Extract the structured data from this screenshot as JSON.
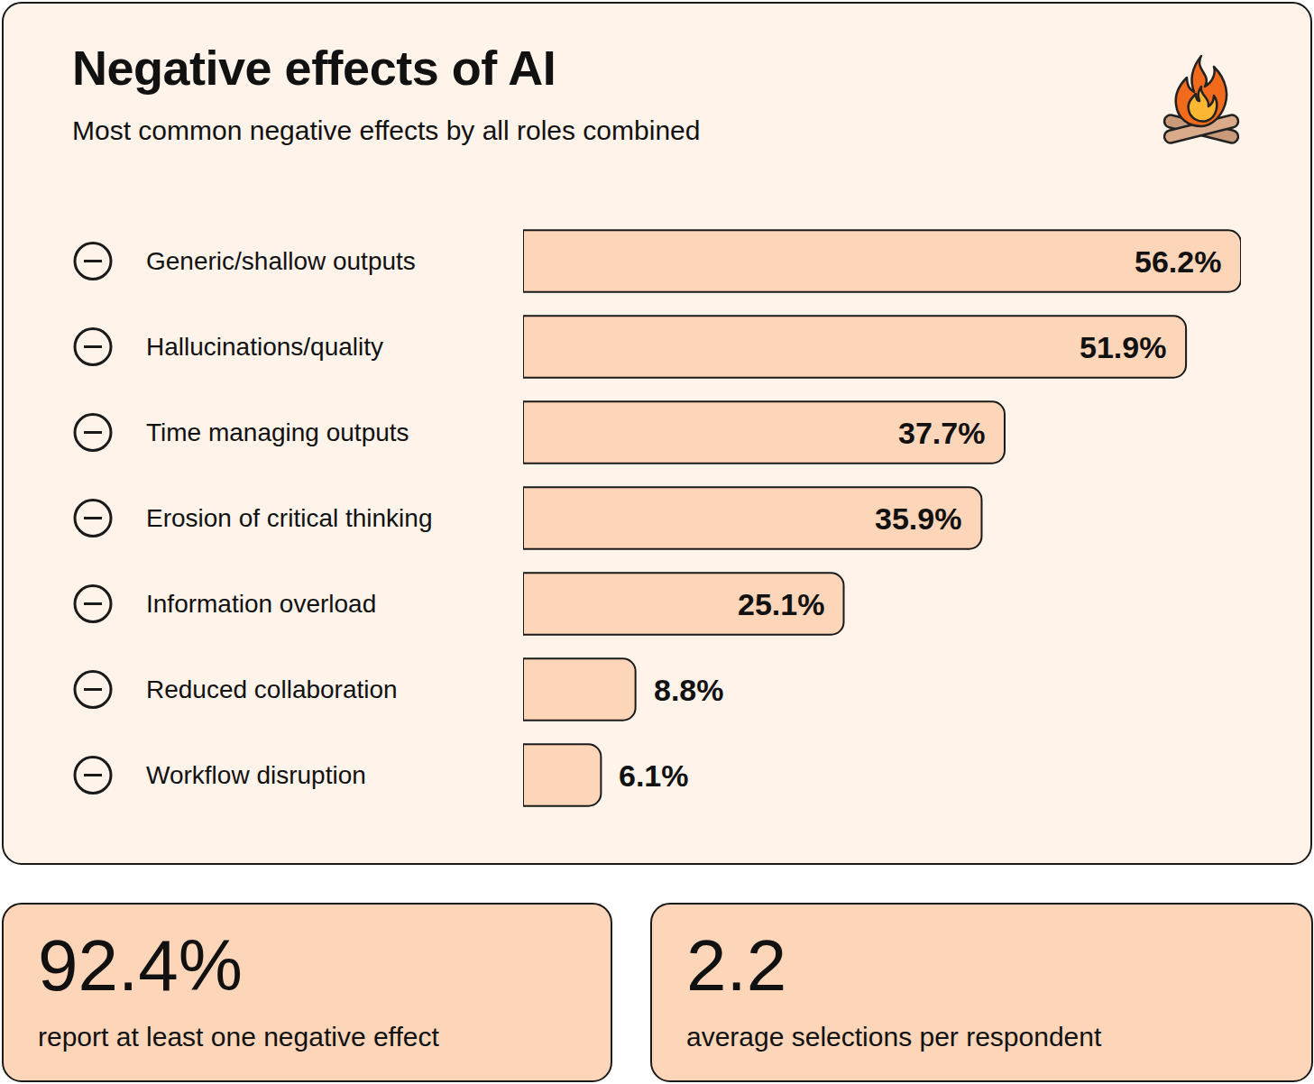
{
  "chart_data": {
    "type": "bar",
    "title": "Negative effects of AI",
    "subtitle": "Most common negative effects by all roles combined",
    "orientation": "horizontal",
    "categories": [
      "Generic/shallow outputs",
      "Hallucinations/quality",
      "Time managing outputs",
      "Erosion of critical thinking",
      "Information overload",
      "Reduced collaboration",
      "Workflow disruption"
    ],
    "values": [
      56.2,
      51.9,
      37.7,
      35.9,
      25.1,
      8.8,
      6.1
    ],
    "value_labels": [
      "56.2%",
      "51.9%",
      "37.7%",
      "35.9%",
      "25.1%",
      "8.8%",
      "6.1%"
    ],
    "color": "#fdd5b8",
    "data_labels": true,
    "tick_labels": "y",
    "grid": false
  },
  "stats": [
    {
      "value": "92.4%",
      "label": "report at least one negative effect"
    },
    {
      "value": "2.2",
      "label": "average selections per respondent"
    }
  ]
}
